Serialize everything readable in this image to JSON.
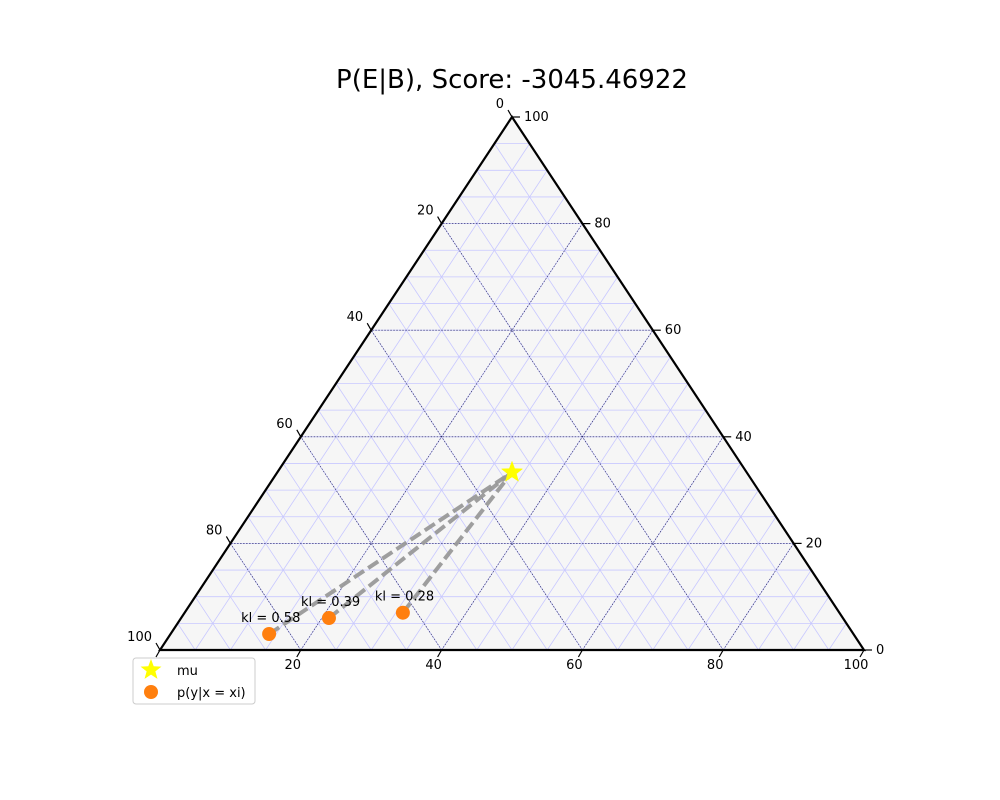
{
  "chart_data": {
    "type": "scatter",
    "subtype": "ternary",
    "title": "P(E|B), Score: -3045.46922",
    "scale": 100,
    "ticks": [
      0,
      20,
      40,
      60,
      80,
      100
    ],
    "minor_grid_step": 5,
    "major_grid_step": 20,
    "grid": true,
    "legend_position": "lower-left",
    "mu": {
      "label": "mu",
      "a": 33.3,
      "b": 33.3,
      "c": 33.3,
      "color": "#ffff00",
      "marker": "star"
    },
    "points": {
      "label": "p(y|x = xi)",
      "color": "#ff7f0e",
      "marker": "circle",
      "items": [
        {
          "a": 31,
          "b": 62,
          "c": 7,
          "kl_label": "kl = 0.28"
        },
        {
          "a": 21,
          "b": 73,
          "c": 6,
          "kl_label": "kl = 0.39"
        },
        {
          "a": 14,
          "b": 83,
          "c": 3,
          "kl_label": "kl = 0.58"
        }
      ]
    },
    "connector_color": "#999999"
  }
}
